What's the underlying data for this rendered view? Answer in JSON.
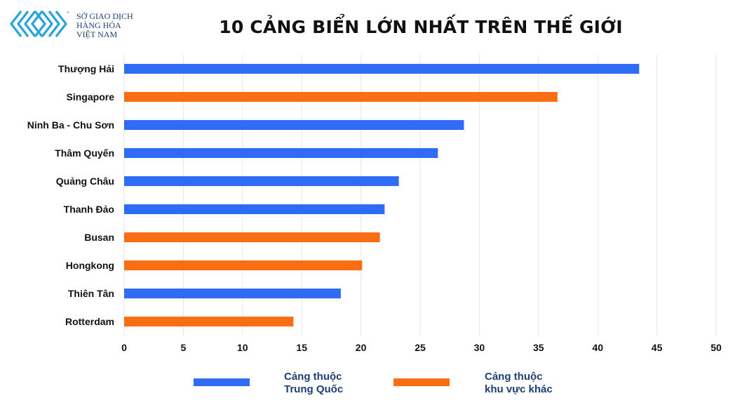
{
  "logo": {
    "line1": "SỞ GIAO DỊCH",
    "line2": "HÀNG HÓA",
    "line3": "VIỆT NAM",
    "mark": "™",
    "color": "#2aa3dc"
  },
  "chart_data": {
    "type": "bar",
    "orientation": "horizontal",
    "title": "10 CẢNG BIỂN LỚN NHẤT TRÊN THẾ GIỚI",
    "categories": [
      "Thượng Hải",
      "Singapore",
      "Ninh Ba - Chu Sơn",
      "Thâm Quyến",
      "Quảng Châu",
      "Thanh Đảo",
      "Busan",
      "Hongkong",
      "Thiên Tân",
      "Rotterdam"
    ],
    "values": [
      43.5,
      36.6,
      28.7,
      26.5,
      23.2,
      22.0,
      21.6,
      20.1,
      18.3,
      14.3
    ],
    "groups": [
      "china",
      "other",
      "china",
      "china",
      "china",
      "china",
      "other",
      "other",
      "china",
      "other"
    ],
    "colors": {
      "china": "#2f6bf5",
      "other": "#fa6e13"
    },
    "xlim": [
      0,
      50
    ],
    "xticks": [
      0,
      5,
      10,
      15,
      20,
      25,
      30,
      35,
      40,
      45,
      50
    ],
    "grid": "vertical",
    "xlabel": "",
    "ylabel": "",
    "legend": {
      "position": "bottom",
      "entries": [
        {
          "key": "china",
          "line1": "Cảng thuộc",
          "line2": "Trung Quốc"
        },
        {
          "key": "other",
          "line1": "Cảng thuộc",
          "line2": "khu vực khác"
        }
      ]
    }
  }
}
